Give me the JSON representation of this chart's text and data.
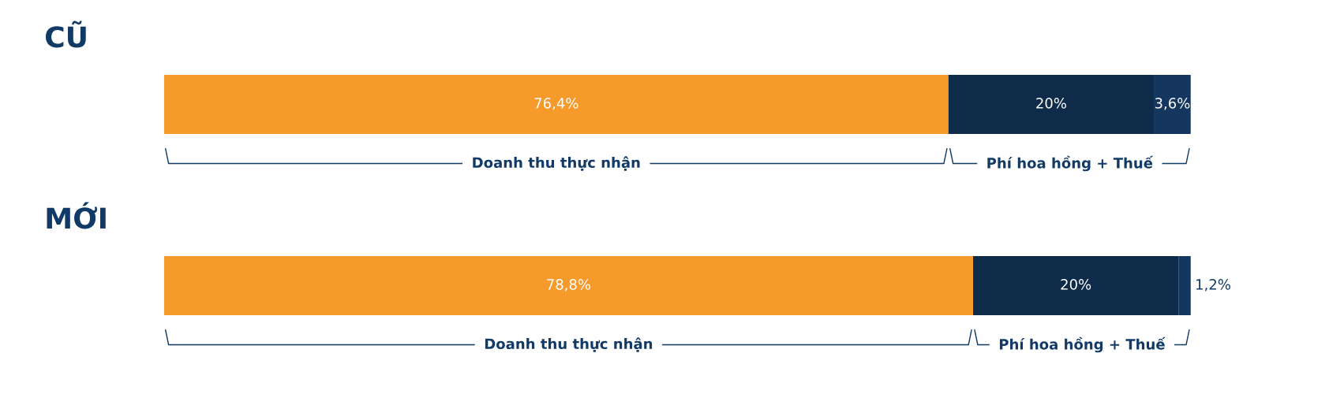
{
  "chart_data": [
    {
      "type": "bar",
      "orientation": "horizontal",
      "stacked": true,
      "title": "CŨ",
      "categories": [
        null
      ],
      "data_labels": true,
      "series": [
        {
          "color": "#f59a2b",
          "values": [
            76.4
          ],
          "value_labels": [
            "76,4%"
          ]
        },
        {
          "color": "#0e2b4a",
          "values": [
            20
          ],
          "value_labels": [
            "20%"
          ]
        },
        {
          "color": "#15375f",
          "values": [
            3.6
          ],
          "value_labels": [
            "3,6%"
          ]
        }
      ],
      "annotations": [
        "Doanh thu thực nhận",
        "Phí hoa hồng + Thuế"
      ]
    },
    {
      "type": "bar",
      "orientation": "horizontal",
      "stacked": true,
      "title": "MỚI",
      "categories": [
        null
      ],
      "data_labels": true,
      "series": [
        {
          "color": "#f59a2b",
          "values": [
            78.8
          ],
          "value_labels": [
            "78,8%"
          ]
        },
        {
          "color": "#0e2b4a",
          "values": [
            20
          ],
          "value_labels": [
            "20%"
          ]
        },
        {
          "color": "#15375f",
          "values": [
            1.2
          ],
          "value_labels": [
            "1,2%"
          ]
        }
      ],
      "annotations": [
        "Doanh thu thực nhận",
        "Phí hoa hồng + Thuế"
      ]
    }
  ]
}
